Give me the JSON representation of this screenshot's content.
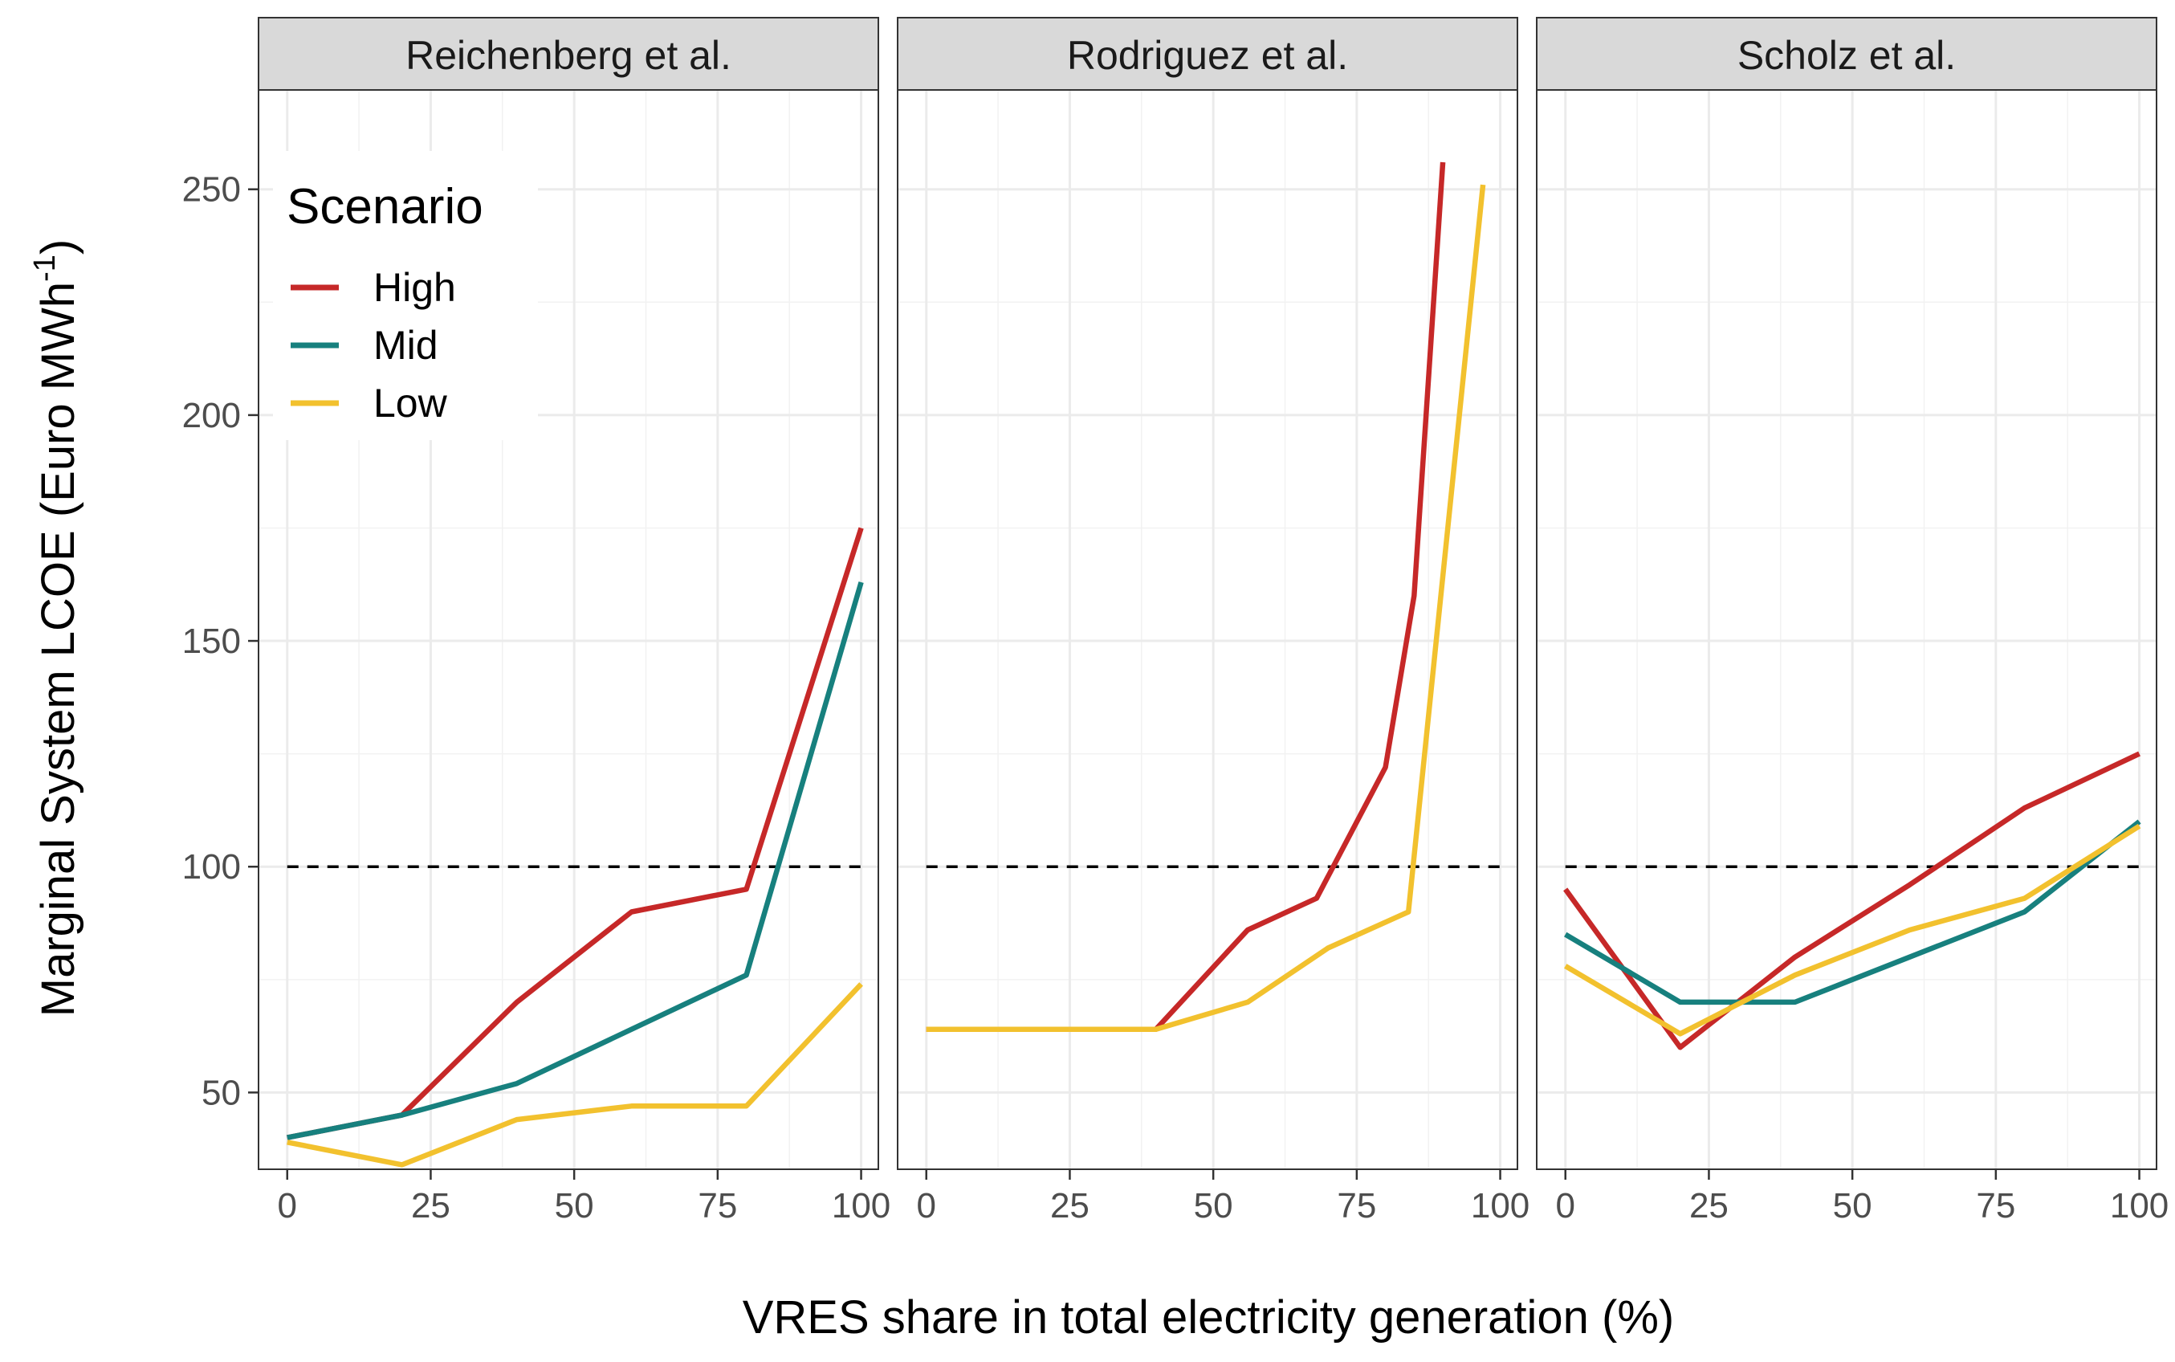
{
  "chart_data": {
    "type": "line",
    "xlabel": "VRES share in total electricity generation (%)",
    "ylabel": "Marginal System LCOE (Euro MWh",
    "ylabel_sup": "-1",
    "ylabel_end": ")",
    "xlim": [
      -5,
      103
    ],
    "ylim": [
      33,
      272
    ],
    "x_ticks": [
      "0",
      "25",
      "50",
      "75",
      "100"
    ],
    "y_ticks": [
      "50",
      "100",
      "150",
      "200",
      "250"
    ],
    "reference_line": 100,
    "grid": true,
    "colors": {
      "High": "#c62828",
      "Mid": "#17807e",
      "Low": "#f2c12e"
    },
    "legend": {
      "title": "Scenario",
      "placement": "inside-top-left",
      "entries": [
        "High",
        "Mid",
        "Low"
      ]
    },
    "panels": [
      {
        "title": "Reichenberg et al.",
        "series": [
          {
            "name": "High",
            "x": [
              0,
              20,
              40,
              60,
              80,
              100
            ],
            "y": [
              40,
              45,
              70,
              90,
              95,
              175
            ]
          },
          {
            "name": "Mid",
            "x": [
              0,
              20,
              40,
              60,
              80,
              100
            ],
            "y": [
              40,
              45,
              52,
              64,
              76,
              163
            ]
          },
          {
            "name": "Low",
            "x": [
              0,
              20,
              40,
              60,
              80,
              100
            ],
            "y": [
              39,
              34,
              44,
              47,
              47,
              74
            ]
          }
        ]
      },
      {
        "title": "Rodriguez et al.",
        "series": [
          {
            "name": "High",
            "x": [
              0,
              40,
              56,
              68,
              80,
              85,
              90
            ],
            "y": [
              64,
              64,
              86,
              93,
              122,
              160,
              256
            ]
          },
          {
            "name": "Low",
            "x": [
              0,
              40,
              56,
              70,
              84,
              97
            ],
            "y": [
              64,
              64,
              70,
              82,
              90,
              251
            ]
          }
        ]
      },
      {
        "title": "Scholz et al.",
        "series": [
          {
            "name": "High",
            "x": [
              0,
              20,
              40,
              60,
              80,
              100
            ],
            "y": [
              95,
              60,
              80,
              96,
              113,
              125
            ]
          },
          {
            "name": "Mid",
            "x": [
              0,
              20,
              40,
              60,
              80,
              100
            ],
            "y": [
              85,
              70,
              70,
              80,
              90,
              110
            ]
          },
          {
            "name": "Low",
            "x": [
              0,
              20,
              40,
              60,
              80,
              100
            ],
            "y": [
              78,
              63,
              76,
              86,
              93,
              109
            ]
          }
        ]
      }
    ]
  }
}
